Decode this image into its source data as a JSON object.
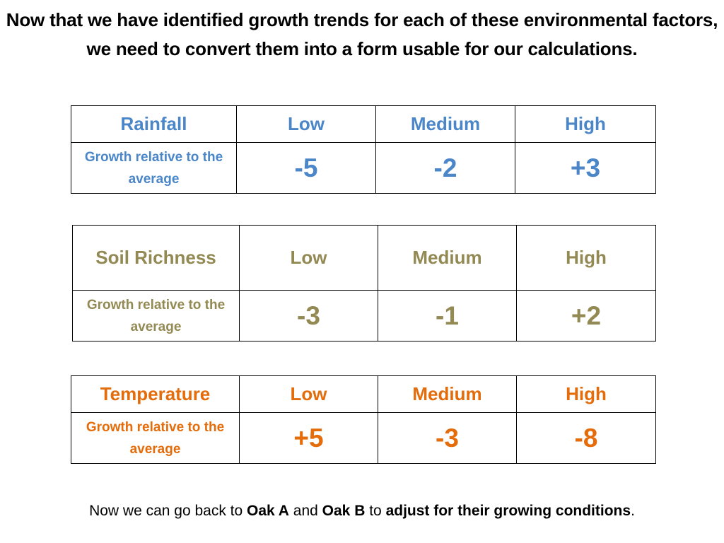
{
  "title": "Now that we have identified growth trends for each of these environmental factors, we need to convert them into a form usable for our calculations.",
  "tables": [
    {
      "factor": "Rainfall",
      "levels": [
        "Low",
        "Medium",
        "High"
      ],
      "row_label": "Growth relative to the average",
      "values": [
        "-5",
        "-2",
        "+3"
      ],
      "color": "#4a86c8"
    },
    {
      "factor": "Soil Richness",
      "levels": [
        "Low",
        "Medium",
        "High"
      ],
      "row_label": "Growth relative to the average",
      "values": [
        "-3",
        "-1",
        "+2"
      ],
      "color": "#938953"
    },
    {
      "factor": "Temperature",
      "levels": [
        "Low",
        "Medium",
        "High"
      ],
      "row_label": "Growth relative to the average",
      "values": [
        "+5",
        "-3",
        "-8"
      ],
      "color": "#e46c0a"
    }
  ],
  "footer": {
    "t1": "Now we can go back to ",
    "b1": "Oak A",
    "t2": " and ",
    "b2": "Oak B",
    "t3": " to ",
    "b3": "adjust for their growing conditions",
    "t4": "."
  }
}
